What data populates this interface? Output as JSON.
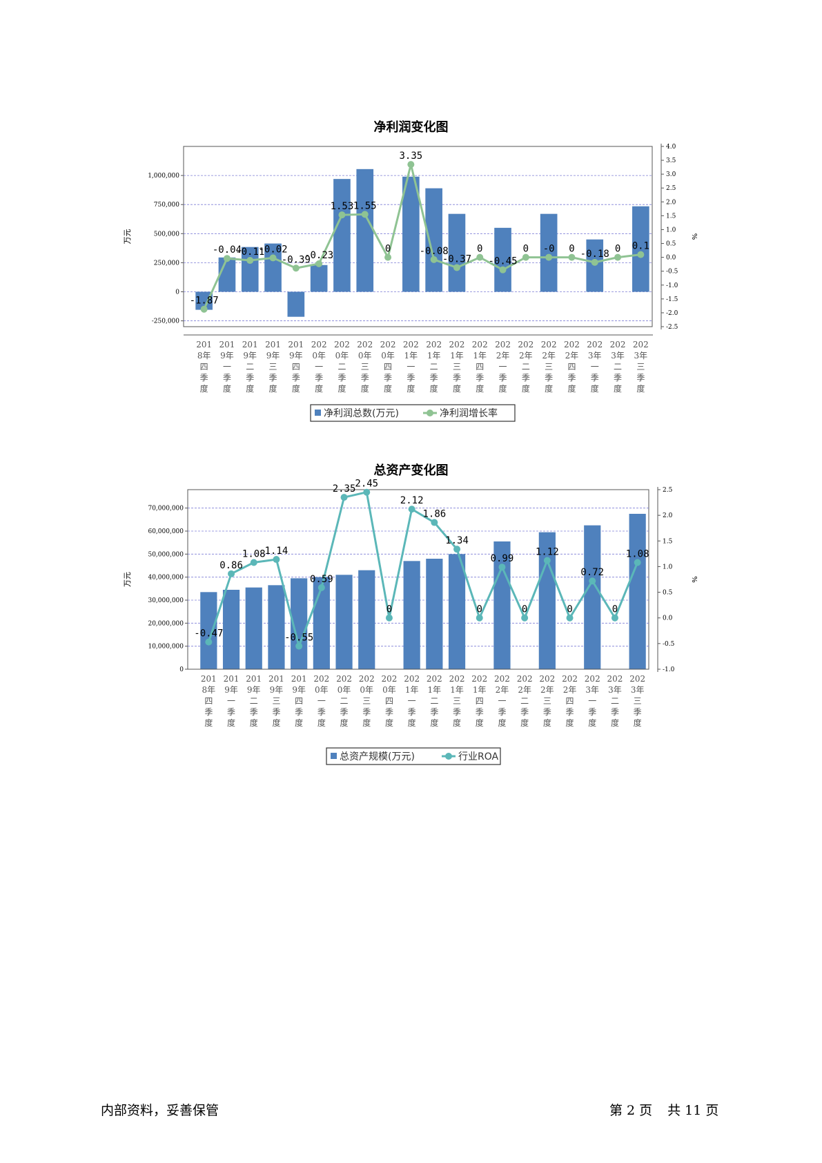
{
  "chart_data": [
    {
      "type": "bar",
      "title": "净利润变化图",
      "ylabel": "万元",
      "y2label": "%",
      "ylim": [
        -300000,
        1250000
      ],
      "y2lim": [
        -2.5,
        4.0
      ],
      "yticks": [
        "1,000,000",
        "750,000",
        "500,000",
        "250,000",
        "0",
        "-250,000"
      ],
      "ytick_values": [
        1000000,
        750000,
        500000,
        250000,
        0,
        -250000
      ],
      "y2ticks": [
        "4.0",
        "3.5",
        "3.0",
        "2.5",
        "2.0",
        "1.5",
        "1.0",
        "0.5",
        "0.0",
        "-0.5",
        "-1.0",
        "-1.5",
        "-2.0",
        "-2.5"
      ],
      "y2tick_values": [
        4.0,
        3.5,
        3.0,
        2.5,
        2.0,
        1.5,
        1.0,
        0.5,
        0.0,
        -0.5,
        -1.0,
        -1.5,
        -2.0,
        -2.5
      ],
      "categories": [
        [
          "201",
          "8年",
          "四",
          "季",
          "度"
        ],
        [
          "201",
          "9年",
          "一",
          "季",
          "度"
        ],
        [
          "201",
          "9年",
          "二",
          "季",
          "度"
        ],
        [
          "201",
          "9年",
          "三",
          "季",
          "度"
        ],
        [
          "201",
          "9年",
          "四",
          "季",
          "度"
        ],
        [
          "202",
          "0年",
          "一",
          "季",
          "度"
        ],
        [
          "202",
          "0年",
          "二",
          "季",
          "度"
        ],
        [
          "202",
          "0年",
          "三",
          "季",
          "度"
        ],
        [
          "202",
          "0年",
          "四",
          "季",
          "度"
        ],
        [
          "202",
          "1年",
          "一",
          "季",
          "度"
        ],
        [
          "202",
          "1年",
          "二",
          "季",
          "度"
        ],
        [
          "202",
          "1年",
          "三",
          "季",
          "度"
        ],
        [
          "202",
          "1年",
          "四",
          "季",
          "度"
        ],
        [
          "202",
          "2年",
          "一",
          "季",
          "度"
        ],
        [
          "202",
          "2年",
          "二",
          "季",
          "度"
        ],
        [
          "202",
          "2年",
          "三",
          "季",
          "度"
        ],
        [
          "202",
          "2年",
          "四",
          "季",
          "度"
        ],
        [
          "202",
          "3年",
          "一",
          "季",
          "度"
        ],
        [
          "202",
          "3年",
          "二",
          "季",
          "度"
        ],
        [
          "202",
          "3年",
          "三",
          "季",
          "度"
        ]
      ],
      "series": [
        {
          "name": "净利润总数(万元)",
          "type": "bar",
          "color": "#4f81bd",
          "values": [
            -155000,
            295000,
            385000,
            415000,
            -215000,
            230000,
            970000,
            1055000,
            0,
            990000,
            890000,
            670000,
            0,
            550000,
            0,
            670000,
            0,
            450000,
            0,
            735000
          ]
        },
        {
          "name": "净利润增长率",
          "type": "line",
          "color": "#8fc393",
          "values": [
            -1.87,
            -0.04,
            -0.11,
            -0.02,
            -0.39,
            -0.23,
            1.53,
            1.55,
            0,
            3.35,
            -0.08,
            -0.37,
            0,
            -0.45,
            0,
            0,
            0,
            -0.18,
            0,
            0.1
          ],
          "labels": [
            "-1.87",
            "-0.04",
            "-0.11",
            "-0.02",
            "-0.39",
            "-0.23",
            "1.53",
            "1.55",
            "0",
            "3.35",
            "-0.08",
            "-0.37",
            "0",
            "-0.45",
            "0",
            "-0",
            "0",
            "-0.18",
            "0",
            "0.1"
          ]
        }
      ],
      "grid": true,
      "legend": "bottom"
    },
    {
      "type": "bar",
      "title": "总资产变化图",
      "ylabel": "万元",
      "y2label": "%",
      "ylim": [
        0,
        78000000
      ],
      "y2lim": [
        -1.0,
        2.5
      ],
      "yticks": [
        "70,000,000",
        "60,000,000",
        "50,000,000",
        "40,000,000",
        "30,000,000",
        "20,000,000",
        "10,000,000",
        "0"
      ],
      "ytick_values": [
        70000000,
        60000000,
        50000000,
        40000000,
        30000000,
        20000000,
        10000000,
        0
      ],
      "y2ticks": [
        "2.5",
        "2.0",
        "1.5",
        "1.0",
        "0.5",
        "0.0",
        "-0.5",
        "-1.0"
      ],
      "y2tick_values": [
        2.5,
        2.0,
        1.5,
        1.0,
        0.5,
        0.0,
        -0.5,
        -1.0
      ],
      "categories": [
        [
          "201",
          "8年",
          "四",
          "季",
          "度"
        ],
        [
          "201",
          "9年",
          "一",
          "季",
          "度"
        ],
        [
          "201",
          "9年",
          "二",
          "季",
          "度"
        ],
        [
          "201",
          "9年",
          "三",
          "季",
          "度"
        ],
        [
          "201",
          "9年",
          "四",
          "季",
          "度"
        ],
        [
          "202",
          "0年",
          "一",
          "季",
          "度"
        ],
        [
          "202",
          "0年",
          "二",
          "季",
          "度"
        ],
        [
          "202",
          "0年",
          "三",
          "季",
          "度"
        ],
        [
          "202",
          "0年",
          "四",
          "季",
          "度"
        ],
        [
          "202",
          "1年",
          "一",
          "季",
          "度"
        ],
        [
          "202",
          "1年",
          "二",
          "季",
          "度"
        ],
        [
          "202",
          "1年",
          "三",
          "季",
          "度"
        ],
        [
          "202",
          "1年",
          "四",
          "季",
          "度"
        ],
        [
          "202",
          "2年",
          "一",
          "季",
          "度"
        ],
        [
          "202",
          "2年",
          "二",
          "季",
          "度"
        ],
        [
          "202",
          "2年",
          "三",
          "季",
          "度"
        ],
        [
          "202",
          "2年",
          "四",
          "季",
          "度"
        ],
        [
          "202",
          "3年",
          "一",
          "季",
          "度"
        ],
        [
          "202",
          "3年",
          "二",
          "季",
          "度"
        ],
        [
          "202",
          "3年",
          "三",
          "季",
          "度"
        ]
      ],
      "series": [
        {
          "name": "总资产规模(万元)",
          "type": "bar",
          "color": "#4f81bd",
          "values": [
            33500000,
            34500000,
            35500000,
            36500000,
            39500000,
            40000000,
            41000000,
            43000000,
            0,
            47000000,
            48000000,
            50000000,
            0,
            55500000,
            0,
            59500000,
            0,
            62500000,
            0,
            67500000
          ]
        },
        {
          "name": "行业ROA",
          "type": "line",
          "color": "#5bb7b8",
          "values": [
            -0.47,
            0.86,
            1.08,
            1.14,
            -0.55,
            0.59,
            2.35,
            2.45,
            0,
            2.12,
            1.86,
            1.34,
            0,
            0.99,
            0,
            1.12,
            0,
            0.72,
            0,
            1.08
          ],
          "labels": [
            "-0.47",
            "0.86",
            "1.08",
            "1.14",
            "-0.55",
            "0.59",
            "2.35",
            "2.45",
            "0",
            "2.12",
            "1.86",
            "1.34",
            "0",
            "0.99",
            "0",
            "1.12",
            "0",
            "0.72",
            "0",
            "1.08"
          ]
        }
      ],
      "grid": true,
      "legend": "bottom"
    }
  ],
  "footer": {
    "left": "内部资料，妥善保管",
    "page_prefix": "第",
    "page_number": "2",
    "page_suffix": "页",
    "total_prefix": "共",
    "total_pages": "11",
    "total_suffix": "页"
  }
}
